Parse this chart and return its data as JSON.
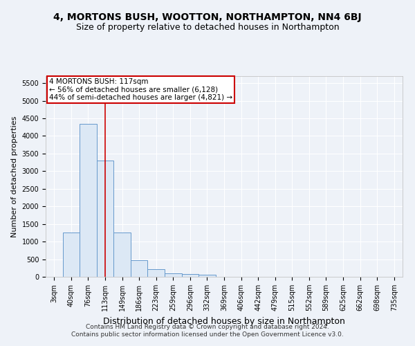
{
  "title": "4, MORTONS BUSH, WOOTTON, NORTHAMPTON, NN4 6BJ",
  "subtitle": "Size of property relative to detached houses in Northampton",
  "xlabel": "Distribution of detached houses by size in Northampton",
  "ylabel": "Number of detached properties",
  "footnote1": "Contains HM Land Registry data © Crown copyright and database right 2024.",
  "footnote2": "Contains public sector information licensed under the Open Government Licence v3.0.",
  "bar_labels": [
    "3sqm",
    "40sqm",
    "76sqm",
    "113sqm",
    "149sqm",
    "186sqm",
    "223sqm",
    "259sqm",
    "296sqm",
    "332sqm",
    "369sqm",
    "406sqm",
    "442sqm",
    "479sqm",
    "515sqm",
    "552sqm",
    "589sqm",
    "625sqm",
    "662sqm",
    "698sqm",
    "735sqm"
  ],
  "bar_values": [
    0,
    1250,
    4350,
    3300,
    1250,
    480,
    220,
    90,
    80,
    60,
    0,
    0,
    0,
    0,
    0,
    0,
    0,
    0,
    0,
    0,
    0
  ],
  "bar_color": "#dce8f5",
  "bar_edge_color": "#6699cc",
  "ylim": [
    0,
    5700
  ],
  "yticks": [
    0,
    500,
    1000,
    1500,
    2000,
    2500,
    3000,
    3500,
    4000,
    4500,
    5000,
    5500
  ],
  "vline_x_index": 3,
  "vline_color": "#cc0000",
  "property_label": "4 MORTONS BUSH: 117sqm",
  "annotation_line1": "← 56% of detached houses are smaller (6,128)",
  "annotation_line2": "44% of semi-detached houses are larger (4,821) →",
  "annotation_box_edgecolor": "#cc0000",
  "bg_color": "#eef2f8",
  "grid_color": "#ffffff",
  "title_fontsize": 10,
  "subtitle_fontsize": 9,
  "ylabel_fontsize": 8,
  "xlabel_fontsize": 9,
  "tick_fontsize": 7,
  "annotation_fontsize": 7.5,
  "footnote_fontsize": 6.5
}
